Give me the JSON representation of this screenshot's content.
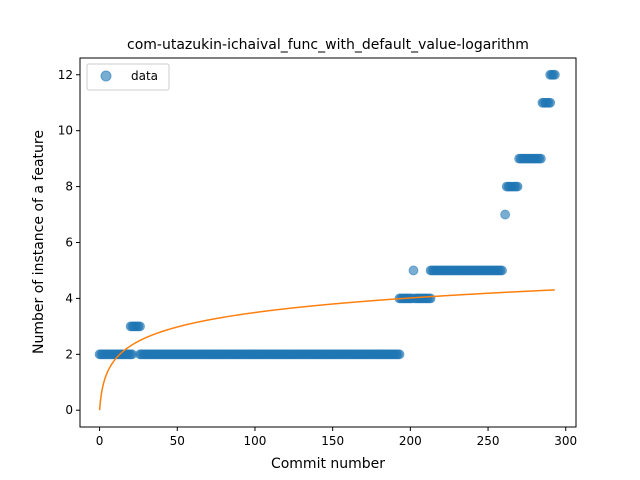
{
  "chart_data": {
    "type": "scatter",
    "title": "com-utazukin-ichaival_func_with_default_value-logarithm",
    "xlabel": "Commit number",
    "ylabel": "Number of instance of a feature",
    "xlim": [
      -12.6,
      306.6
    ],
    "ylim": [
      -0.6,
      12.6
    ],
    "xticks": [
      0,
      50,
      100,
      150,
      200,
      250,
      300
    ],
    "yticks": [
      0,
      2,
      4,
      6,
      8,
      10,
      12
    ],
    "grid": false,
    "legend_position": "top-left",
    "series": [
      {
        "name": "data",
        "kind": "scatter",
        "color": "#1f77b4",
        "alpha": 0.6,
        "segments": [
          {
            "x_start": 0,
            "x_end": 21,
            "y": 2
          },
          {
            "x_start": 20,
            "x_end": 26,
            "y": 3
          },
          {
            "x_start": 26,
            "x_end": 193,
            "y": 2
          },
          {
            "x_start": 193,
            "x_end": 201,
            "y": 4
          },
          {
            "x_start": 202,
            "x_end": 202,
            "y": 5
          },
          {
            "x_start": 203,
            "x_end": 213,
            "y": 4
          },
          {
            "x_start": 213,
            "x_end": 259,
            "y": 5
          },
          {
            "x_start": 261,
            "x_end": 261,
            "y": 7
          },
          {
            "x_start": 262,
            "x_end": 269,
            "y": 8
          },
          {
            "x_start": 270,
            "x_end": 284,
            "y": 9
          },
          {
            "x_start": 285,
            "x_end": 290,
            "y": 11
          },
          {
            "x_start": 290,
            "x_end": 293,
            "y": 12
          }
        ]
      },
      {
        "name": "",
        "kind": "line",
        "color": "#ff7f0e",
        "function": "y = a * ln(x + 1)",
        "a": 0.7573,
        "x_range": [
          0,
          293
        ]
      }
    ]
  }
}
